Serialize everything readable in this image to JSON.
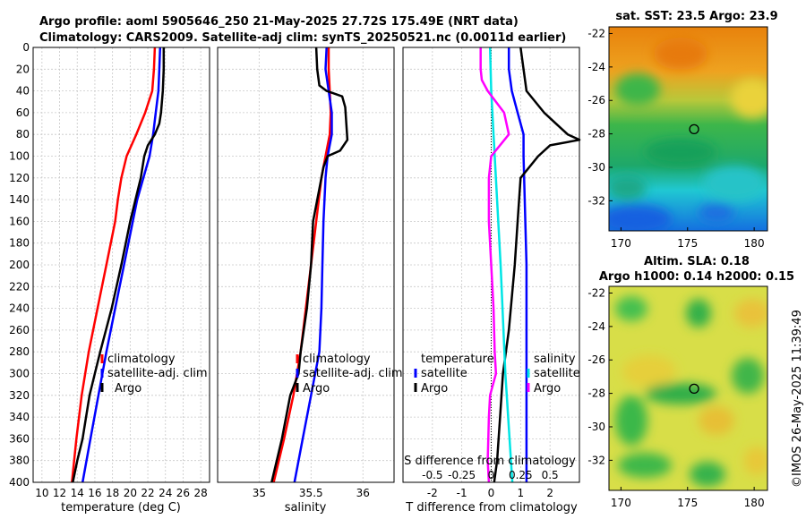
{
  "title": {
    "line1": "Argo profile: aoml 5905646_250 21-May-2025 27.72S 175.49E (NRT data)",
    "line2": "Climatology: CARS2009. Satellite-adj clim: synTS_20250521.nc (0.0011d earlier)"
  },
  "depth_ticks": [
    "0",
    "20",
    "40",
    "60",
    "80",
    "100",
    "120",
    "140",
    "160",
    "180",
    "200",
    "220",
    "240",
    "260",
    "280",
    "300",
    "320",
    "340",
    "360",
    "380",
    "400"
  ],
  "colors": {
    "climatology": "#ff0000",
    "satellite": "#0000ff",
    "argo": "#000000",
    "cyan": "#00e5e5",
    "magenta": "#ff00ff"
  },
  "chart_data": [
    {
      "type": "line",
      "id": "temperature",
      "xlabel": "temperature (deg C)",
      "xlim": [
        9,
        29
      ],
      "ylim": [
        400,
        0
      ],
      "xticks": [
        10,
        12,
        14,
        16,
        18,
        20,
        22,
        24,
        26,
        28
      ],
      "xtick_labels": [
        "10",
        "12",
        "14",
        "16",
        "18",
        "20",
        "22",
        "24",
        "26",
        "28"
      ],
      "legend": [
        "climatology",
        "satellite-adj. clim",
        "Argo"
      ],
      "series": [
        {
          "name": "climatology",
          "color": "red",
          "depth": [
            0,
            20,
            40,
            60,
            80,
            100,
            120,
            140,
            160,
            200,
            240,
            280,
            320,
            360,
            400
          ],
          "values": [
            22.8,
            22.7,
            22.5,
            21.7,
            20.7,
            19.6,
            19.0,
            18.6,
            18.3,
            17.3,
            16.3,
            15.3,
            14.5,
            13.9,
            13.4
          ]
        },
        {
          "name": "satellite-adj. clim",
          "color": "blue",
          "depth": [
            0,
            20,
            40,
            60,
            80,
            100,
            120,
            140,
            160,
            200,
            240,
            280,
            320,
            360,
            400
          ],
          "values": [
            23.4,
            23.3,
            23.2,
            22.9,
            22.6,
            22.2,
            21.5,
            20.8,
            20.3,
            19.3,
            18.3,
            17.3,
            16.4,
            15.5,
            14.6
          ]
        },
        {
          "name": "Argo",
          "color": "black",
          "depth": [
            0,
            20,
            40,
            60,
            70,
            80,
            90,
            100,
            120,
            140,
            160,
            200,
            240,
            280,
            300,
            320,
            340,
            360,
            380,
            400
          ],
          "values": [
            23.8,
            23.8,
            23.7,
            23.5,
            23.3,
            22.8,
            22.0,
            21.6,
            21.2,
            20.6,
            20.0,
            19.0,
            17.9,
            16.6,
            16.0,
            15.4,
            15.0,
            14.6,
            14.0,
            13.5
          ]
        }
      ]
    },
    {
      "type": "line",
      "id": "salinity",
      "xlabel": "salinity",
      "xlim": [
        34.6,
        36.3
      ],
      "ylim": [
        400,
        0
      ],
      "xticks": [
        35,
        35.5,
        36
      ],
      "xtick_labels": [
        "35",
        "35.5",
        "36"
      ],
      "legend": [
        "climatology",
        "satellite-adj. clim",
        "Argo"
      ],
      "series": [
        {
          "name": "climatology",
          "color": "red",
          "depth": [
            0,
            20,
            40,
            60,
            80,
            100,
            120,
            160,
            200,
            240,
            280,
            320,
            360,
            400
          ],
          "values": [
            35.67,
            35.67,
            35.68,
            35.69,
            35.68,
            35.64,
            35.6,
            35.55,
            35.5,
            35.45,
            35.4,
            35.33,
            35.24,
            35.14
          ]
        },
        {
          "name": "satellite-adj. clim",
          "color": "blue",
          "depth": [
            0,
            20,
            40,
            60,
            80,
            100,
            120,
            160,
            200,
            240,
            280,
            320,
            360,
            400
          ],
          "values": [
            35.65,
            35.64,
            35.67,
            35.7,
            35.7,
            35.66,
            35.64,
            35.62,
            35.61,
            35.6,
            35.58,
            35.5,
            35.42,
            35.34
          ]
        },
        {
          "name": "Argo",
          "color": "black",
          "depth": [
            0,
            20,
            35,
            40,
            45,
            55,
            70,
            85,
            95,
            100,
            110,
            130,
            160,
            200,
            240,
            280,
            300,
            320,
            360,
            400
          ],
          "values": [
            35.55,
            35.56,
            35.58,
            35.65,
            35.8,
            35.83,
            35.84,
            35.85,
            35.78,
            35.66,
            35.62,
            35.58,
            35.52,
            35.5,
            35.46,
            35.4,
            35.38,
            35.3,
            35.22,
            35.12
          ]
        }
      ]
    },
    {
      "type": "line",
      "id": "differences",
      "xlabel": "T difference from climatology",
      "xlabel_top": "S difference from climatology",
      "xlim": [
        -3,
        3
      ],
      "ylim": [
        400,
        0
      ],
      "xticks": [
        -2,
        -1,
        0,
        1,
        2
      ],
      "xtick_labels": [
        "-2",
        "-1",
        "0",
        "1",
        "2"
      ],
      "sticks": [
        "-0.5",
        "-0.25",
        "0",
        "0.25",
        "0.5"
      ],
      "legend_t_title": "temperature",
      "legend_s_title": "salinity",
      "legend_t": [
        "satellite",
        "Argo"
      ],
      "legend_s": [
        "satellite",
        "Argo"
      ],
      "series": [
        {
          "name": "T satellite",
          "color": "blue",
          "depth": [
            0,
            20,
            40,
            60,
            80,
            100,
            200,
            300,
            400
          ],
          "values": [
            0.6,
            0.6,
            0.7,
            0.9,
            1.1,
            1.1,
            1.2,
            1.2,
            1.2
          ]
        },
        {
          "name": "T Argo",
          "color": "black",
          "depth": [
            0,
            20,
            40,
            60,
            70,
            80,
            85,
            90,
            100,
            120,
            160,
            200,
            260,
            300,
            340,
            380,
            400
          ],
          "values": [
            1.0,
            1.1,
            1.2,
            1.8,
            2.2,
            2.6,
            3.0,
            2.0,
            1.6,
            1.0,
            0.9,
            0.8,
            0.6,
            0.4,
            0.3,
            0.2,
            0.1
          ]
        },
        {
          "name": "S satellite",
          "color": "cyan",
          "depth": [
            0,
            40,
            100,
            200,
            300,
            400
          ],
          "values": [
            -0.01,
            0.0,
            0.03,
            0.08,
            0.12,
            0.18
          ]
        },
        {
          "name": "S Argo",
          "color": "magenta",
          "depth": [
            0,
            20,
            30,
            40,
            60,
            80,
            100,
            120,
            160,
            200,
            240,
            280,
            300,
            320,
            340,
            380,
            400
          ],
          "values": [
            -0.09,
            -0.09,
            -0.08,
            -0.03,
            0.11,
            0.15,
            0.0,
            -0.02,
            -0.02,
            0.0,
            0.02,
            0.03,
            0.04,
            -0.01,
            -0.02,
            -0.03,
            -0.02
          ]
        }
      ]
    },
    {
      "type": "heatmap",
      "id": "sst-map",
      "title": "sat. SST: 23.5 Argo: 23.9",
      "xticks": [
        170,
        175,
        180
      ],
      "yticks": [
        -22,
        -24,
        -26,
        -28,
        -30,
        -32
      ],
      "xlabels": [
        "170",
        "175",
        "180"
      ],
      "ylabels": [
        "-22",
        "-24",
        "-26",
        "-28",
        "-30",
        "-32"
      ],
      "marker": {
        "lon": 175.49,
        "lat": -27.72
      }
    },
    {
      "type": "heatmap",
      "id": "sla-map",
      "title1": "Altim. SLA: 0.18",
      "title2": "Argo h1000: 0.14 h2000: 0.15",
      "xticks": [
        170,
        175,
        180
      ],
      "yticks": [
        -22,
        -24,
        -26,
        -28,
        -30,
        -32
      ],
      "xlabels": [
        "170",
        "175",
        "180"
      ],
      "ylabels": [
        "-22",
        "-24",
        "-26",
        "-28",
        "-30",
        "-32"
      ],
      "marker": {
        "lon": 175.49,
        "lat": -27.72
      }
    }
  ],
  "footer": "©IMOS 26-May-2025 11:39:49"
}
